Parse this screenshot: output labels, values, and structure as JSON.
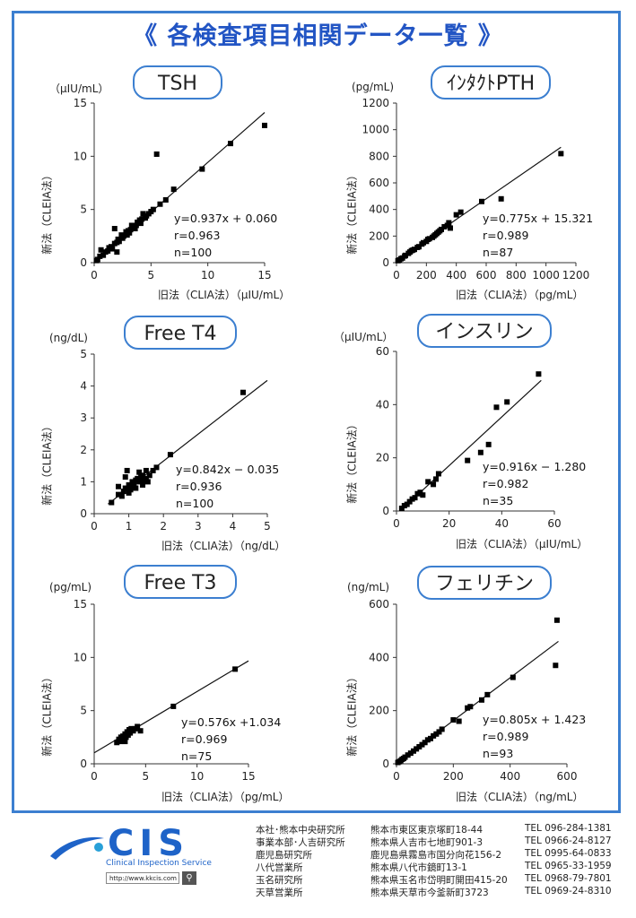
{
  "title": "《 各検査項目相関データ一覧 》",
  "colors": {
    "accent": "#3c7fd0",
    "title": "#2255c4",
    "point": "#000000"
  },
  "chart_data": [
    {
      "id": "tsh",
      "type": "scatter",
      "title": "TSH",
      "unit_y": "（μIU/mL）",
      "ylabel": "新法（CLEIA法）",
      "xlabel": "旧法（CLIA法）（μIU/mL）",
      "xlim": [
        0,
        15
      ],
      "ylim": [
        0,
        15
      ],
      "xticks": [
        0,
        5,
        10,
        15
      ],
      "yticks": [
        0,
        5,
        10,
        15
      ],
      "fit": {
        "slope": 0.937,
        "intercept": 0.06,
        "x_range": [
          0,
          15
        ]
      },
      "stats": [
        "y=0.937x + 0.060",
        "r=0.963",
        "n=100"
      ],
      "points": [
        [
          0.2,
          0.2
        ],
        [
          0.3,
          0.3
        ],
        [
          0.5,
          0.6
        ],
        [
          0.6,
          1.2
        ],
        [
          0.8,
          0.7
        ],
        [
          1.0,
          1.0
        ],
        [
          1.2,
          1.1
        ],
        [
          1.3,
          1.4
        ],
        [
          1.5,
          1.5
        ],
        [
          1.6,
          1.3
        ],
        [
          1.8,
          1.8
        ],
        [
          1.8,
          3.2
        ],
        [
          2.0,
          1.9
        ],
        [
          2.0,
          1.0
        ],
        [
          2.1,
          2.2
        ],
        [
          2.2,
          2.0
        ],
        [
          2.4,
          2.6
        ],
        [
          2.5,
          2.3
        ],
        [
          2.6,
          2.5
        ],
        [
          2.8,
          2.9
        ],
        [
          2.9,
          2.6
        ],
        [
          3.0,
          3.0
        ],
        [
          3.1,
          2.8
        ],
        [
          3.2,
          3.1
        ],
        [
          3.3,
          3.5
        ],
        [
          3.5,
          3.4
        ],
        [
          3.6,
          3.2
        ],
        [
          3.7,
          3.5
        ],
        [
          3.8,
          3.8
        ],
        [
          4.0,
          4.0
        ],
        [
          4.1,
          3.7
        ],
        [
          4.2,
          4.1
        ],
        [
          4.3,
          4.6
        ],
        [
          4.5,
          4.2
        ],
        [
          4.6,
          4.4
        ],
        [
          4.8,
          4.6
        ],
        [
          5.0,
          4.8
        ],
        [
          5.2,
          5.0
        ],
        [
          5.5,
          10.2
        ],
        [
          5.8,
          5.5
        ],
        [
          6.3,
          5.9
        ],
        [
          7.0,
          6.9
        ],
        [
          9.5,
          8.8
        ],
        [
          12.0,
          11.2
        ],
        [
          15.0,
          12.9
        ]
      ]
    },
    {
      "id": "pth",
      "type": "scatter",
      "title": "ｲﾝﾀｸﾄPTH",
      "unit_y": "(pg/mL)",
      "ylabel": "新法（CLEIA法）",
      "xlabel": "旧法（CLIA法）（pg/mL）",
      "xlim": [
        0,
        1200
      ],
      "ylim": [
        0,
        1200
      ],
      "xticks": [
        0,
        200,
        400,
        600,
        800,
        1000,
        1200
      ],
      "yticks": [
        0,
        200,
        400,
        600,
        800,
        1000,
        1200
      ],
      "fit": {
        "slope": 0.775,
        "intercept": 15.321,
        "x_range": [
          0,
          1100
        ]
      },
      "stats": [
        "y=0.775x + 15.321",
        "r=0.989",
        "n=87"
      ],
      "points": [
        [
          10,
          15
        ],
        [
          20,
          20
        ],
        [
          30,
          30
        ],
        [
          40,
          35
        ],
        [
          55,
          50
        ],
        [
          60,
          55
        ],
        [
          80,
          70
        ],
        [
          90,
          80
        ],
        [
          100,
          90
        ],
        [
          110,
          95
        ],
        [
          120,
          100
        ],
        [
          140,
          115
        ],
        [
          150,
          120
        ],
        [
          170,
          140
        ],
        [
          180,
          150
        ],
        [
          200,
          160
        ],
        [
          210,
          175
        ],
        [
          220,
          180
        ],
        [
          240,
          190
        ],
        [
          250,
          200
        ],
        [
          260,
          210
        ],
        [
          270,
          220
        ],
        [
          280,
          230
        ],
        [
          290,
          240
        ],
        [
          300,
          250
        ],
        [
          320,
          270
        ],
        [
          340,
          280
        ],
        [
          350,
          300
        ],
        [
          360,
          260
        ],
        [
          400,
          360
        ],
        [
          430,
          380
        ],
        [
          570,
          460
        ],
        [
          700,
          480
        ],
        [
          1100,
          820
        ]
      ]
    },
    {
      "id": "ft4",
      "type": "scatter",
      "title": "Free T4",
      "unit_y": "(ng/dL)",
      "ylabel": "新法（CLEIA法）",
      "xlabel": "旧法（CLIA法）（ng/dL）",
      "xlim": [
        0,
        5
      ],
      "ylim": [
        0,
        5
      ],
      "xticks": [
        0,
        1,
        2,
        3,
        4,
        5
      ],
      "yticks": [
        0,
        1,
        2,
        3,
        4,
        5
      ],
      "fit": {
        "slope": 0.842,
        "intercept": -0.035,
        "x_range": [
          0.4,
          5
        ]
      },
      "stats": [
        "y=0.842x − 0.035",
        "r=0.936",
        "n=100"
      ],
      "points": [
        [
          0.5,
          0.35
        ],
        [
          0.7,
          0.6
        ],
        [
          0.7,
          0.85
        ],
        [
          0.8,
          0.55
        ],
        [
          0.85,
          0.7
        ],
        [
          0.9,
          0.8
        ],
        [
          0.9,
          1.15
        ],
        [
          0.95,
          1.35
        ],
        [
          1.0,
          0.65
        ],
        [
          1.0,
          0.9
        ],
        [
          1.05,
          0.75
        ],
        [
          1.1,
          1.0
        ],
        [
          1.1,
          0.85
        ],
        [
          1.15,
          0.95
        ],
        [
          1.2,
          1.05
        ],
        [
          1.2,
          0.8
        ],
        [
          1.25,
          1.1
        ],
        [
          1.3,
          1.0
        ],
        [
          1.3,
          1.3
        ],
        [
          1.35,
          1.15
        ],
        [
          1.4,
          0.9
        ],
        [
          1.4,
          1.2
        ],
        [
          1.45,
          1.05
        ],
        [
          1.5,
          1.1
        ],
        [
          1.5,
          1.35
        ],
        [
          1.55,
          1.0
        ],
        [
          1.6,
          1.2
        ],
        [
          1.7,
          1.35
        ],
        [
          1.8,
          1.45
        ],
        [
          2.2,
          1.85
        ],
        [
          4.3,
          3.8
        ]
      ]
    },
    {
      "id": "insulin",
      "type": "scatter",
      "title": "インスリン",
      "unit_y": "（μIU/mL）",
      "ylabel": "新法（CLEIA法）",
      "xlabel": "旧法（CLIA法）（μIU/mL）",
      "xlim": [
        0,
        60
      ],
      "ylim": [
        0,
        60
      ],
      "xticks": [
        0,
        20,
        40,
        60
      ],
      "yticks": [
        0,
        20,
        40,
        60
      ],
      "fit": {
        "slope": 0.916,
        "intercept": -1.28,
        "x_range": [
          2,
          55
        ]
      },
      "stats": [
        "y=0.916x − 1.280",
        "r=0.982",
        "n=35"
      ],
      "points": [
        [
          2,
          1
        ],
        [
          3,
          2
        ],
        [
          4,
          2.5
        ],
        [
          5,
          3.5
        ],
        [
          6,
          4.5
        ],
        [
          7,
          5
        ],
        [
          8,
          6.5
        ],
        [
          9,
          7
        ],
        [
          10,
          6
        ],
        [
          12,
          11
        ],
        [
          14,
          10
        ],
        [
          15,
          12
        ],
        [
          16,
          14
        ],
        [
          27,
          19
        ],
        [
          32,
          22
        ],
        [
          35,
          25
        ],
        [
          38,
          39
        ],
        [
          42,
          41
        ],
        [
          54,
          51.5
        ]
      ]
    },
    {
      "id": "ft3",
      "type": "scatter",
      "title": "Free T3",
      "unit_y": "(pg/mL)",
      "ylabel": "新法（CLEIA法）",
      "xlabel": "旧法（CLIA法）（pg/mL）",
      "xlim": [
        0,
        15
      ],
      "ylim": [
        0,
        15
      ],
      "xticks": [
        0,
        5,
        10,
        15
      ],
      "yticks": [
        0,
        5,
        10,
        15
      ],
      "fit": {
        "slope": 0.576,
        "intercept": 1.034,
        "x_range": [
          0,
          15
        ]
      },
      "stats": [
        "y=0.576x +1.034",
        "r=0.969",
        "n=75"
      ],
      "points": [
        [
          2.2,
          2.0
        ],
        [
          2.4,
          2.3
        ],
        [
          2.5,
          2.1
        ],
        [
          2.6,
          2.5
        ],
        [
          2.7,
          2.2
        ],
        [
          2.8,
          2.6
        ],
        [
          2.9,
          2.4
        ],
        [
          3.0,
          2.8
        ],
        [
          3.0,
          2.1
        ],
        [
          3.1,
          2.5
        ],
        [
          3.2,
          3.0
        ],
        [
          3.3,
          2.7
        ],
        [
          3.4,
          3.2
        ],
        [
          3.5,
          2.9
        ],
        [
          3.6,
          3.3
        ],
        [
          3.8,
          3.1
        ],
        [
          4.0,
          3.3
        ],
        [
          4.2,
          3.5
        ],
        [
          4.5,
          3.1
        ],
        [
          7.7,
          5.4
        ],
        [
          13.7,
          8.9
        ]
      ]
    },
    {
      "id": "ferritin",
      "type": "scatter",
      "title": "フェリチン",
      "unit_y": "(ng/mL)",
      "ylabel": "新法（CLEIA法）",
      "xlabel": "旧法（CLIA法）（ng/mL）",
      "xlim": [
        0,
        600
      ],
      "ylim": [
        0,
        600
      ],
      "xticks": [
        0,
        200,
        400,
        600
      ],
      "yticks": [
        0,
        200,
        400,
        600
      ],
      "fit": {
        "slope": 0.805,
        "intercept": 1.423,
        "x_range": [
          0,
          570
        ]
      },
      "stats": [
        "y=0.805x + 1.423",
        "r=0.989",
        "n=93"
      ],
      "points": [
        [
          5,
          5
        ],
        [
          10,
          8
        ],
        [
          15,
          12
        ],
        [
          20,
          17
        ],
        [
          25,
          20
        ],
        [
          30,
          25
        ],
        [
          40,
          33
        ],
        [
          50,
          40
        ],
        [
          60,
          48
        ],
        [
          70,
          56
        ],
        [
          80,
          64
        ],
        [
          90,
          72
        ],
        [
          100,
          80
        ],
        [
          110,
          90
        ],
        [
          120,
          95
        ],
        [
          130,
          105
        ],
        [
          140,
          112
        ],
        [
          150,
          120
        ],
        [
          160,
          130
        ],
        [
          200,
          165
        ],
        [
          220,
          160
        ],
        [
          250,
          210
        ],
        [
          260,
          215
        ],
        [
          300,
          240
        ],
        [
          320,
          260
        ],
        [
          410,
          325
        ],
        [
          560,
          370
        ],
        [
          565,
          540
        ]
      ]
    }
  ],
  "footer": {
    "logo_text": "CIS",
    "logo_sub": "Clinical Inspection Service",
    "url": "http://www.kkcis.com",
    "search_icon": "search-icon",
    "offices": [
      {
        "name": "本社･熊本中央研究所",
        "addr": "熊本市東区東京塚町18-44",
        "tel": "TEL 096-284-1381"
      },
      {
        "name": "事業本部･人吉研究所",
        "addr": "熊本県人吉市七地町901-3",
        "tel": "TEL 0966-24-8127"
      },
      {
        "name": "鹿児島研究所",
        "addr": "鹿児島県霧島市国分向花156-2",
        "tel": "TEL 0995-64-0833"
      },
      {
        "name": "八代営業所",
        "addr": "熊本県八代市鏡町13-1",
        "tel": "TEL 0965-33-1959"
      },
      {
        "name": "玉名研究所",
        "addr": "熊本県玉名市岱明町開田415-20",
        "tel": "TEL 0968-79-7801"
      },
      {
        "name": "天草営業所",
        "addr": "熊本県天草市今釜新町3723",
        "tel": "TEL 0969-24-8310"
      }
    ]
  }
}
